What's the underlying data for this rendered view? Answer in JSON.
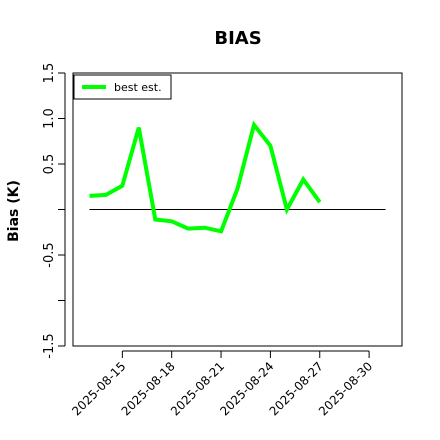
{
  "chart_data": {
    "type": "line",
    "title": "BIAS",
    "xlabel": "",
    "ylabel": "Bias (K)",
    "ylim": [
      -1.5,
      1.5
    ],
    "y_ticks": [
      -1.5,
      -1.0,
      -0.5,
      0.0,
      0.5,
      1.0,
      1.5
    ],
    "y_tick_labels": [
      "-1.5",
      "",
      "-0.5",
      "",
      "0.5",
      "1.0",
      "1.5"
    ],
    "xlim": [
      "2025-08-12",
      "2025-09-01"
    ],
    "x_ticks": [
      "2025-08-15",
      "2025-08-18",
      "2025-08-21",
      "2025-08-24",
      "2025-08-27",
      "2025-08-30"
    ],
    "x": [
      "2025-08-13",
      "2025-08-14",
      "2025-08-15",
      "2025-08-16",
      "2025-08-17",
      "2025-08-18",
      "2025-08-19",
      "2025-08-20",
      "2025-08-21",
      "2025-08-22",
      "2025-08-23",
      "2025-08-24",
      "2025-08-25",
      "2025-08-26",
      "2025-08-27",
      "2025-08-28"
    ],
    "series": [
      {
        "name": "best est.",
        "color": "#00ff00",
        "values": [
          0.15,
          0.16,
          0.26,
          0.9,
          -0.11,
          -0.13,
          -0.21,
          -0.2,
          -0.24,
          0.23,
          0.93,
          0.7,
          0.0,
          0.33,
          0.08,
          null
        ]
      }
    ],
    "reference_line": {
      "y": 0.0,
      "x_start": "2025-08-13",
      "x_end": "2025-08-31",
      "color": "#000000"
    },
    "legend_position": "top-left",
    "grid": false
  }
}
